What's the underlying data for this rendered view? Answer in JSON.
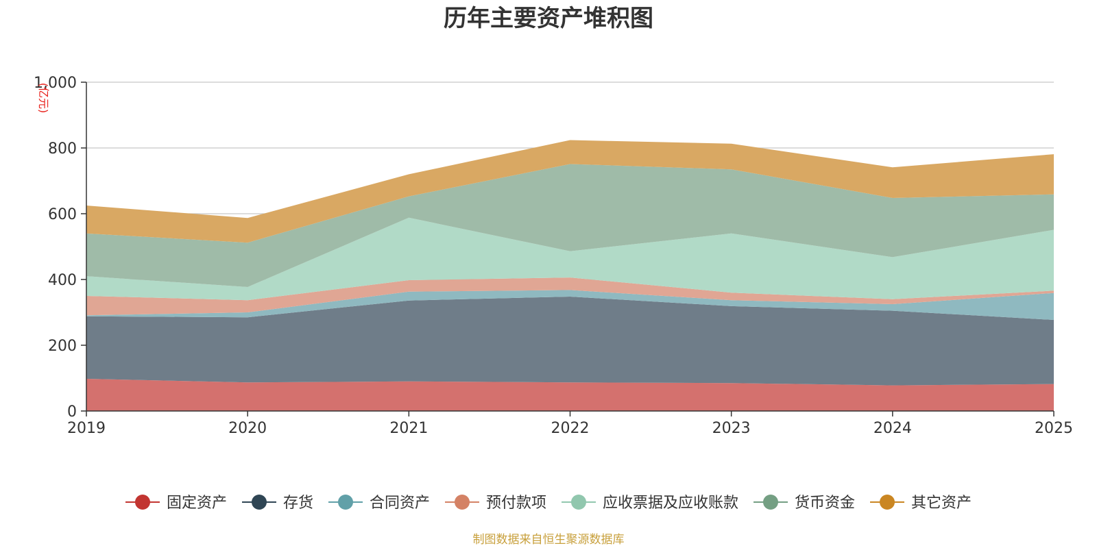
{
  "chart_data": {
    "type": "area",
    "stacked": true,
    "title": "历年主要资产堆积图",
    "unit_label": "(亿元)",
    "x": [
      "2019",
      "2020",
      "2021",
      "2022",
      "2023",
      "2024",
      "2025"
    ],
    "ylim": [
      0,
      1000
    ],
    "yticks": [
      0,
      200,
      400,
      600,
      800,
      1000
    ],
    "ytick_labels": [
      "0",
      "200",
      "400",
      "600",
      "800",
      "1,000"
    ],
    "grid": true,
    "legend_position": "bottom",
    "series": [
      {
        "name": "固定资产",
        "legend_color": "#c23531",
        "fill": "#d4716e",
        "values": [
          98,
          87,
          90,
          87,
          85,
          78,
          82
        ]
      },
      {
        "name": "存货",
        "legend_color": "#2f4554",
        "fill": "#6f7d89",
        "values": [
          190,
          198,
          246,
          261,
          234,
          227,
          195
        ]
      },
      {
        "name": "合同资产",
        "legend_color": "#61a0a8",
        "fill": "#8fb9c0",
        "values": [
          3,
          15,
          27,
          20,
          18,
          20,
          82
        ]
      },
      {
        "name": "预付款项",
        "legend_color": "#d48265",
        "fill": "#e0a694",
        "values": [
          59,
          37,
          35,
          38,
          23,
          15,
          7
        ]
      },
      {
        "name": "应收票据及应收账款",
        "legend_color": "#91c7ae",
        "fill": "#b1dac7",
        "values": [
          60,
          40,
          190,
          80,
          180,
          128,
          185
        ]
      },
      {
        "name": "货币资金",
        "legend_color": "#749f83",
        "fill": "#9fbba8",
        "values": [
          130,
          135,
          65,
          265,
          195,
          180,
          108
        ]
      },
      {
        "name": "其它资产",
        "legend_color": "#ca8622",
        "fill": "#d9a863",
        "values": [
          85,
          75,
          67,
          73,
          78,
          93,
          122
        ]
      }
    ]
  },
  "source_text": "制图数据来自恒生聚源数据库"
}
